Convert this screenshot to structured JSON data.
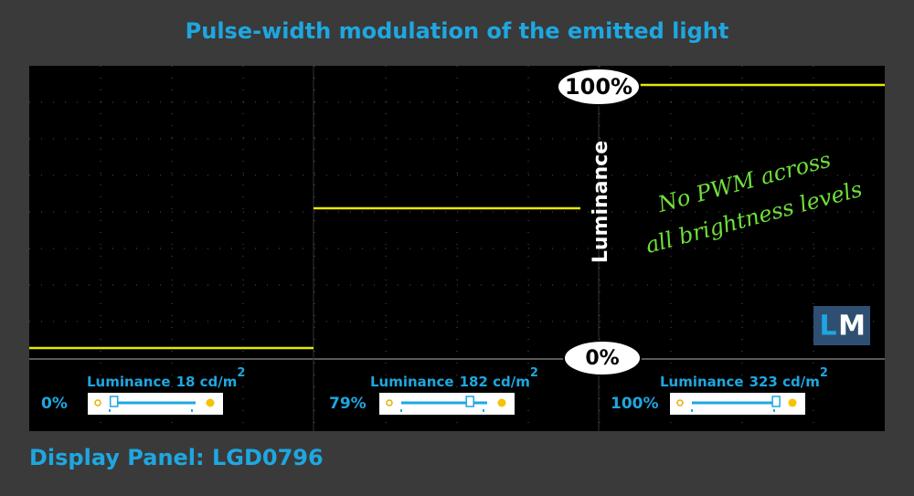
{
  "header": {
    "title": "Pulse-width modulation of the emitted light"
  },
  "scope": {
    "top_marker": "100%",
    "bottom_marker": "0%",
    "axis_label": "Luminance",
    "annotation": [
      "No PWM across",
      "all brightness levels"
    ],
    "logo": [
      "L",
      "M"
    ]
  },
  "panels": [
    {
      "brightness": "0%",
      "label": "Luminance",
      "reading": "18 cd/m",
      "exponent": "2"
    },
    {
      "brightness": "79%",
      "label": "Luminance",
      "reading": "182 cd/m",
      "exponent": "2"
    },
    {
      "brightness": "100%",
      "label": "Luminance",
      "reading": "323 cd/m",
      "exponent": "2"
    }
  ],
  "footer": {
    "caption": "Display Panel: LGD0796"
  }
}
